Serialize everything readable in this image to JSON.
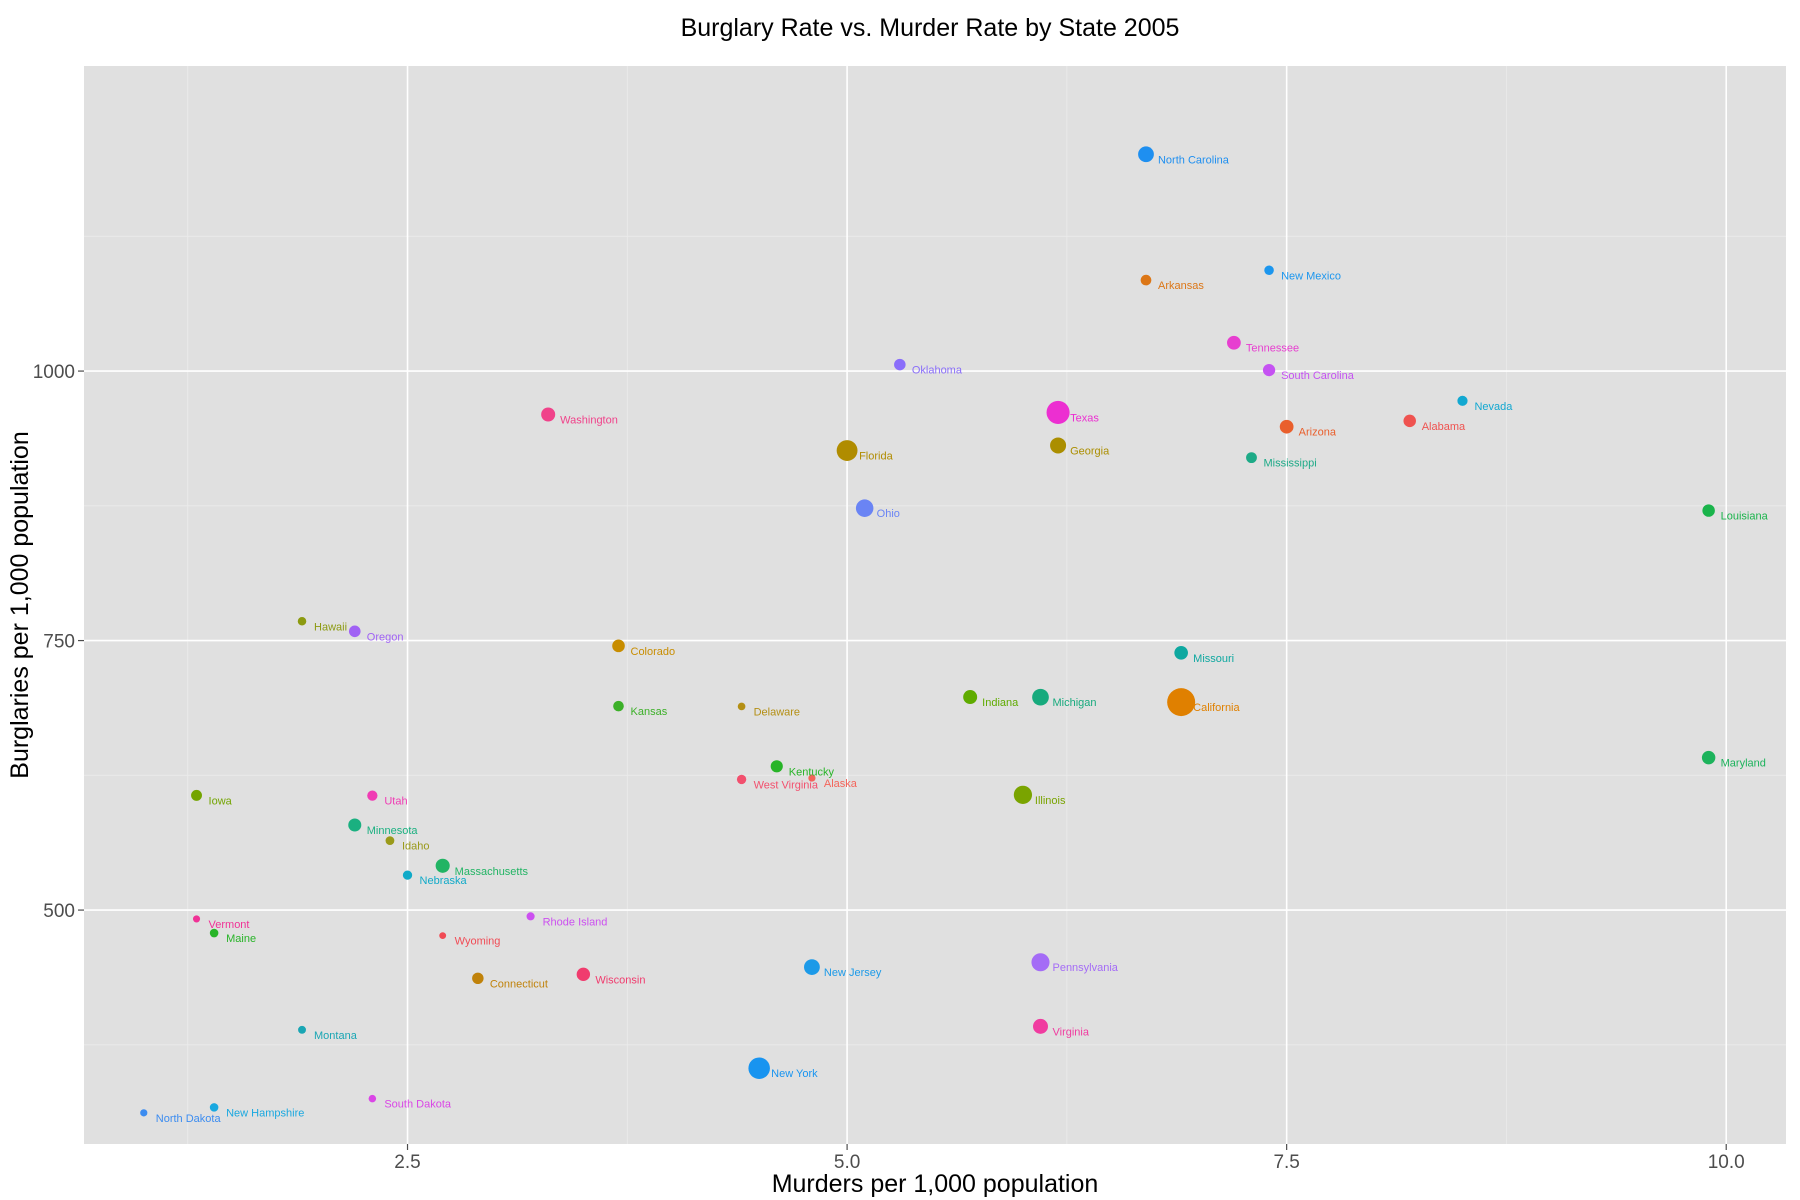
{
  "chart_data": {
    "type": "scatter",
    "title": "Burglary Rate vs. Murder Rate by State 2005",
    "xlabel": "Murders per 1,000 population",
    "ylabel": "Burglaries per 1,000 population",
    "xlim": [
      0.66,
      10.34
    ],
    "ylim": [
      283,
      1283
    ],
    "xticks": [
      2.5,
      5.0,
      7.5,
      10.0
    ],
    "xtick_labels": [
      "2.5",
      "5.0",
      "7.5",
      "10.0"
    ],
    "yticks": [
      500,
      750,
      1000
    ],
    "ytick_labels": [
      "500",
      "750",
      "1000"
    ],
    "grid": true,
    "legend": "none",
    "size_encoding": "state population",
    "points": [
      {
        "state": "North Carolina",
        "x": 6.7,
        "y": 1201.1,
        "size": 8.68,
        "color": "#1e8ff0"
      },
      {
        "state": "New Mexico",
        "x": 7.4,
        "y": 1093.5,
        "size": 1.93,
        "color": "#1c96ee"
      },
      {
        "state": "Arkansas",
        "x": 6.7,
        "y": 1084.4,
        "size": 2.78,
        "color": "#dc7616"
      },
      {
        "state": "Tennessee",
        "x": 7.2,
        "y": 1026.3,
        "size": 6.0,
        "color": "#e73fd0"
      },
      {
        "state": "Oklahoma",
        "x": 5.3,
        "y": 1006.0,
        "size": 3.55,
        "color": "#8a6efa"
      },
      {
        "state": "South Carolina",
        "x": 7.4,
        "y": 1000.9,
        "size": 4.26,
        "color": "#c552f2"
      },
      {
        "state": "Nevada",
        "x": 8.5,
        "y": 972.4,
        "size": 2.41,
        "color": "#12a8d1"
      },
      {
        "state": "Texas",
        "x": 6.2,
        "y": 961.6,
        "size": 22.86,
        "color": "#ec2fd1"
      },
      {
        "state": "Washington",
        "x": 3.3,
        "y": 959.7,
        "size": 6.29,
        "color": "#f0428a"
      },
      {
        "state": "Alabama",
        "x": 8.2,
        "y": 953.8,
        "size": 4.56,
        "color": "#ef5350"
      },
      {
        "state": "Arizona",
        "x": 7.5,
        "y": 948.4,
        "size": 5.94,
        "color": "#e95f2c"
      },
      {
        "state": "Georgia",
        "x": 6.2,
        "y": 931.0,
        "size": 9.07,
        "color": "#ab8e00"
      },
      {
        "state": "Florida",
        "x": 5.0,
        "y": 926.3,
        "size": 17.79,
        "color": "#b08c00"
      },
      {
        "state": "Mississippi",
        "x": 7.3,
        "y": 919.7,
        "size": 2.92,
        "color": "#1daa87"
      },
      {
        "state": "Ohio",
        "x": 5.1,
        "y": 872.8,
        "size": 11.46,
        "color": "#6a84f4"
      },
      {
        "state": "Louisiana",
        "x": 9.9,
        "y": 870.6,
        "size": 4.52,
        "color": "#1ab44b"
      },
      {
        "state": "Hawaii",
        "x": 1.9,
        "y": 767.9,
        "size": 1.28,
        "color": "#8c9a10"
      },
      {
        "state": "Oregon",
        "x": 2.2,
        "y": 758.6,
        "size": 3.64,
        "color": "#a062f4"
      },
      {
        "state": "Colorado",
        "x": 3.7,
        "y": 745.1,
        "size": 4.67,
        "color": "#c88d00"
      },
      {
        "state": "Missouri",
        "x": 6.9,
        "y": 738.7,
        "size": 5.8,
        "color": "#0ea8a0"
      },
      {
        "state": "Indiana",
        "x": 5.7,
        "y": 697.6,
        "size": 6.27,
        "color": "#5fab00"
      },
      {
        "state": "Michigan",
        "x": 6.1,
        "y": 697.5,
        "size": 10.12,
        "color": "#17aa7d"
      },
      {
        "state": "California",
        "x": 6.9,
        "y": 692.9,
        "size": 36.13,
        "color": "#e08000"
      },
      {
        "state": "Kansas",
        "x": 3.7,
        "y": 689.2,
        "size": 2.74,
        "color": "#3cb028"
      },
      {
        "state": "Delaware",
        "x": 4.4,
        "y": 688.9,
        "size": 0.84,
        "color": "#b48f14"
      },
      {
        "state": "Maryland",
        "x": 9.9,
        "y": 641.4,
        "size": 5.6,
        "color": "#1db35c"
      },
      {
        "state": "Kentucky",
        "x": 4.6,
        "y": 633.4,
        "size": 4.17,
        "color": "#28b428"
      },
      {
        "state": "West Virginia",
        "x": 4.4,
        "y": 621.2,
        "size": 1.82,
        "color": "#f2506e"
      },
      {
        "state": "Alaska",
        "x": 4.8,
        "y": 622.5,
        "size": 0.66,
        "color": "#f4645a"
      },
      {
        "state": "Iowa",
        "x": 1.3,
        "y": 606.4,
        "size": 2.97,
        "color": "#73a400"
      },
      {
        "state": "Utah",
        "x": 2.3,
        "y": 606.2,
        "size": 2.47,
        "color": "#f03cb4"
      },
      {
        "state": "Illinois",
        "x": 6.0,
        "y": 606.9,
        "size": 12.76,
        "color": "#7aa400"
      },
      {
        "state": "Minnesota",
        "x": 2.2,
        "y": 578.9,
        "size": 5.13,
        "color": "#1ab080"
      },
      {
        "state": "Idaho",
        "x": 2.4,
        "y": 564.4,
        "size": 1.43,
        "color": "#9a9a1a"
      },
      {
        "state": "Massachusetts",
        "x": 2.7,
        "y": 541.1,
        "size": 6.4,
        "color": "#22b464"
      },
      {
        "state": "Nebraska",
        "x": 2.5,
        "y": 532.4,
        "size": 1.76,
        "color": "#10aac8"
      },
      {
        "state": "Rhode Island",
        "x": 3.2,
        "y": 494.2,
        "size": 1.08,
        "color": "#cc50f0"
      },
      {
        "state": "Vermont",
        "x": 1.3,
        "y": 491.8,
        "size": 0.62,
        "color": "#f03296"
      },
      {
        "state": "Maine",
        "x": 1.4,
        "y": 478.7,
        "size": 1.32,
        "color": "#28b428"
      },
      {
        "state": "Wyoming",
        "x": 2.7,
        "y": 476.3,
        "size": 0.51,
        "color": "#f04b55"
      },
      {
        "state": "Pennsylvania",
        "x": 6.1,
        "y": 451.6,
        "size": 12.43,
        "color": "#a46cf6"
      },
      {
        "state": "New Jersey",
        "x": 4.8,
        "y": 447.1,
        "size": 8.72,
        "color": "#1c9ae8"
      },
      {
        "state": "Wisconsin",
        "x": 3.5,
        "y": 440.4,
        "size": 5.54,
        "color": "#f03c6e"
      },
      {
        "state": "Connecticut",
        "x": 2.9,
        "y": 436.7,
        "size": 3.51,
        "color": "#c0820a"
      },
      {
        "state": "Virginia",
        "x": 6.1,
        "y": 392.1,
        "size": 7.57,
        "color": "#f03ca0"
      },
      {
        "state": "Montana",
        "x": 1.9,
        "y": 388.9,
        "size": 0.94,
        "color": "#1aa6b4"
      },
      {
        "state": "New York",
        "x": 4.5,
        "y": 353.3,
        "size": 19.25,
        "color": "#1894f0"
      },
      {
        "state": "South Dakota",
        "x": 2.3,
        "y": 325.1,
        "size": 0.78,
        "color": "#da46e6"
      },
      {
        "state": "New Hampshire",
        "x": 1.4,
        "y": 317.0,
        "size": 1.31,
        "color": "#19a8e0"
      },
      {
        "state": "North Dakota",
        "x": 1.0,
        "y": 311.9,
        "size": 0.64,
        "color": "#3c8cf0"
      }
    ]
  }
}
